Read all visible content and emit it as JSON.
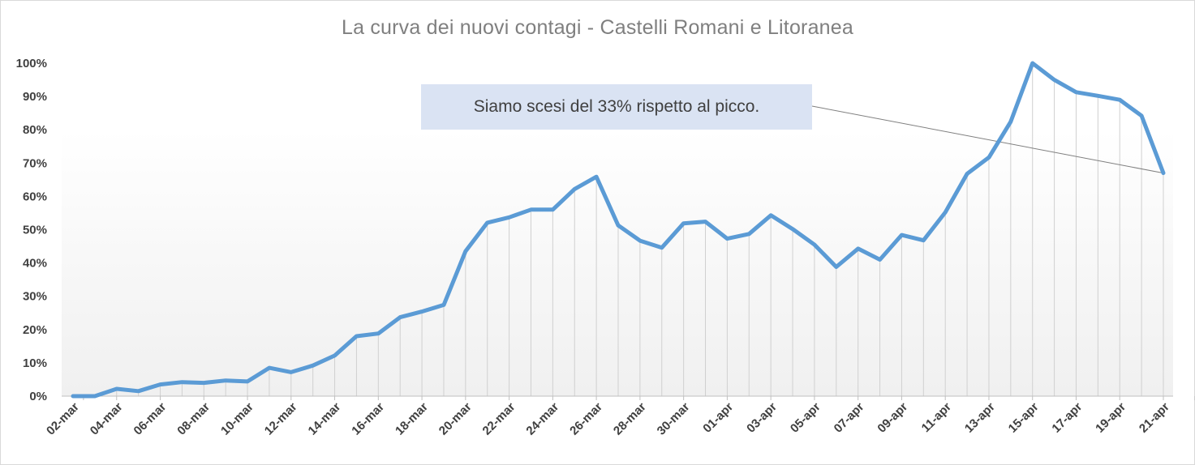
{
  "chart_data": {
    "type": "line",
    "title": "La curva dei nuovi contagi - Castelli  Romani  e Litoranea",
    "xlabel": "",
    "ylabel": "",
    "ylim": [
      0,
      100
    ],
    "yticks": [
      "0%",
      "10%",
      "20%",
      "30%",
      "40%",
      "50%",
      "60%",
      "70%",
      "80%",
      "90%",
      "100%"
    ],
    "grid": "vertical drop lines",
    "legend": "none",
    "line_color": "#5b9bd5",
    "x": [
      "02-mar",
      "03-mar",
      "04-mar",
      "05-mar",
      "06-mar",
      "07-mar",
      "08-mar",
      "09-mar",
      "10-mar",
      "11-mar",
      "12-mar",
      "13-mar",
      "14-mar",
      "15-mar",
      "16-mar",
      "17-mar",
      "18-mar",
      "19-mar",
      "20-mar",
      "21-mar",
      "22-mar",
      "23-mar",
      "24-mar",
      "25-mar",
      "26-mar",
      "27-mar",
      "28-mar",
      "29-mar",
      "30-mar",
      "31-mar",
      "01-apr",
      "02-apr",
      "03-apr",
      "04-apr",
      "05-apr",
      "06-apr",
      "07-apr",
      "08-apr",
      "09-apr",
      "10-apr",
      "11-apr",
      "12-apr",
      "13-apr",
      "14-apr",
      "15-apr",
      "16-apr",
      "17-apr",
      "18-apr",
      "19-apr",
      "20-apr",
      "21-apr"
    ],
    "x_tick_labels": [
      "02-mar",
      "04-mar",
      "06-mar",
      "08-mar",
      "10-mar",
      "12-mar",
      "14-mar",
      "16-mar",
      "18-mar",
      "20-mar",
      "22-mar",
      "24-mar",
      "26-mar",
      "28-mar",
      "30-mar",
      "01-apr",
      "03-apr",
      "05-apr",
      "07-apr",
      "09-apr",
      "11-apr",
      "13-apr",
      "15-apr",
      "17-apr",
      "19-apr",
      "21-apr"
    ],
    "values": [
      0,
      0,
      2.2,
      1.5,
      3.5,
      4.2,
      4.0,
      4.7,
      4.4,
      8.5,
      7.2,
      9.2,
      12.2,
      18.0,
      18.8,
      23.7,
      25.4,
      27.4,
      43.5,
      52.1,
      53.7,
      56.0,
      56.0,
      62.2,
      65.9,
      51.3,
      46.7,
      44.6,
      51.9,
      52.4,
      47.3,
      48.7,
      54.3,
      50.2,
      45.5,
      38.8,
      44.3,
      41.0,
      48.4,
      46.8,
      55.2,
      66.8,
      71.7,
      82.4,
      100.0,
      95.0,
      91.3,
      90.2,
      89.0,
      84.2,
      67.0
    ],
    "annotation": "Siamo scesi del 33% rispetto al picco."
  }
}
